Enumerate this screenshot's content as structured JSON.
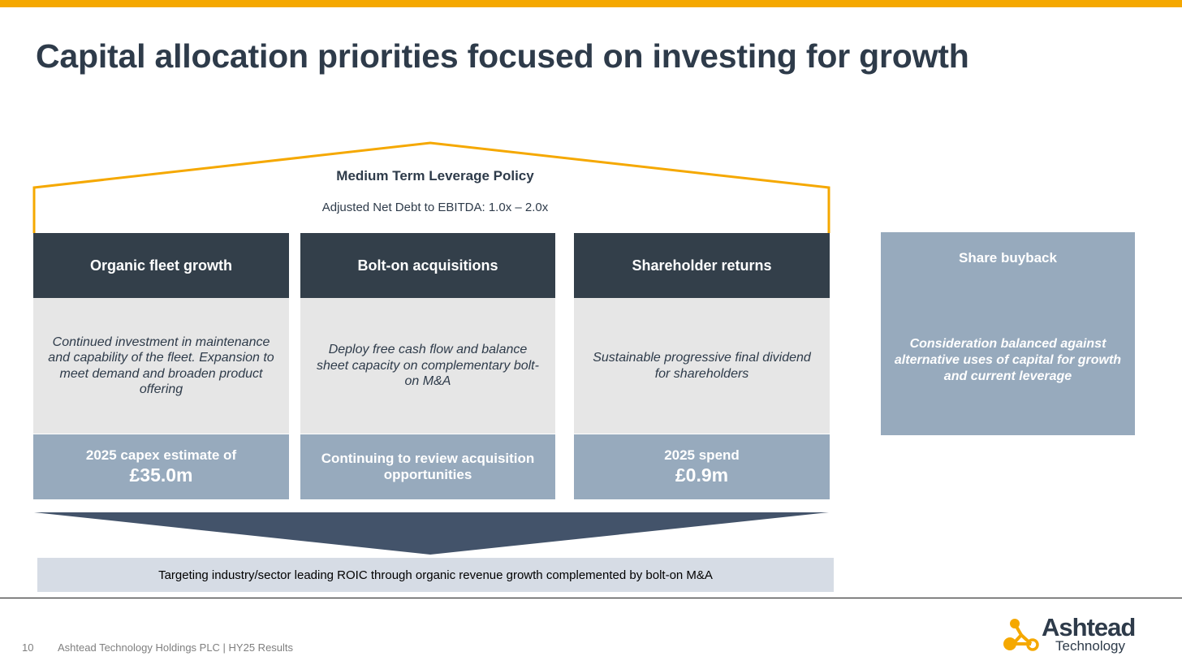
{
  "colors": {
    "accent": "#f5a800",
    "dark_navy": "#333f4a",
    "title_text": "#2e3b4a",
    "light_grey": "#e6e6e6",
    "steel_blue": "#97aabd",
    "arrow": "#43536a",
    "target_bg": "#d6dce5"
  },
  "title": "Capital allocation priorities focused on investing for growth",
  "policy": {
    "title": "Medium Term Leverage Policy",
    "subtitle": "Adjusted Net Debt to EBITDA: 1.0x – 2.0x"
  },
  "pillars": [
    {
      "header": "Organic fleet growth",
      "body": "Continued investment in maintenance and capability of the fleet. Expansion to meet demand and broaden product offering",
      "footer_line": "2025 capex estimate of",
      "footer_value": "£35.0m"
    },
    {
      "header": "Bolt-on acquisitions",
      "body": "Deploy free cash flow and balance sheet capacity on complementary bolt-on M&A",
      "footer_line": "Continuing to review acquisition opportunities"
    },
    {
      "header": "Shareholder returns",
      "body": "Sustainable progressive final dividend for shareholders",
      "footer_line": "2025 spend",
      "footer_value": "£0.9m"
    }
  ],
  "buyback": {
    "title": "Share buyback",
    "body": "Consideration balanced against alternative uses of capital for growth and current leverage"
  },
  "target": "Targeting industry/sector leading ROIC through organic revenue growth complemented by bolt-on M&A",
  "footer": {
    "page_number": "10",
    "text": "Ashtead Technology Holdings PLC | HY25 Results"
  },
  "logo": {
    "name": "Ashtead",
    "sub": "Technology",
    "icon": "molecule-icon"
  }
}
